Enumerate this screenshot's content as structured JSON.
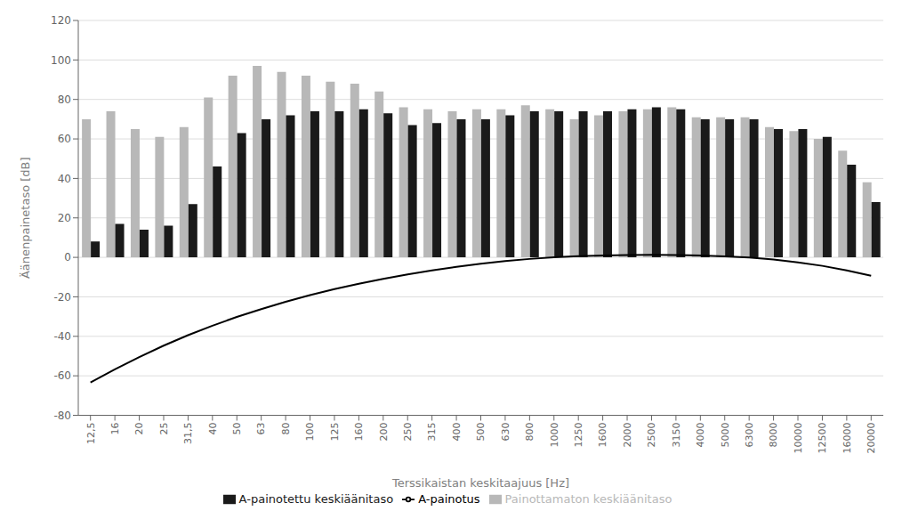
{
  "chart_data": {
    "type": "bar",
    "categories": [
      "12,5",
      "16",
      "20",
      "25",
      "31,5",
      "40",
      "50",
      "63",
      "80",
      "100",
      "125",
      "160",
      "200",
      "250",
      "315",
      "400",
      "500",
      "630",
      "800",
      "1000",
      "1250",
      "1600",
      "2000",
      "2500",
      "3150",
      "4000",
      "5000",
      "6300",
      "8000",
      "10000",
      "12500",
      "16000",
      "20000"
    ],
    "series": [
      {
        "name": "Painottamaton keskiäänitaso",
        "type": "bar",
        "color": "#b8b8b8",
        "values": [
          70,
          74,
          65,
          61,
          66,
          81,
          92,
          97,
          94,
          92,
          89,
          88,
          84,
          76,
          75,
          74,
          75,
          75,
          77,
          75,
          70,
          72,
          74,
          75,
          76,
          71,
          71,
          71,
          66,
          64,
          60,
          54,
          38
        ]
      },
      {
        "name": "A-painotettu keskiäänitaso",
        "type": "bar",
        "color": "#1a1a1a",
        "values": [
          8,
          17,
          14,
          16,
          27,
          46,
          63,
          70,
          72,
          74,
          74,
          75,
          73,
          67,
          68,
          70,
          70,
          72,
          74,
          74,
          74,
          74,
          75,
          76,
          75,
          70,
          70,
          70,
          65,
          65,
          61,
          47,
          28
        ]
      },
      {
        "name": "A-painotus",
        "type": "line",
        "color": "#000000",
        "values": [
          -63.4,
          -56.7,
          -50.5,
          -44.7,
          -39.4,
          -34.6,
          -30.2,
          -26.2,
          -22.5,
          -19.1,
          -16.1,
          -13.4,
          -10.9,
          -8.6,
          -6.6,
          -4.8,
          -3.2,
          -1.9,
          -0.8,
          0.0,
          0.6,
          1.0,
          1.2,
          1.3,
          1.2,
          1.0,
          0.5,
          -0.1,
          -1.1,
          -2.5,
          -4.3,
          -6.6,
          -9.3
        ]
      }
    ],
    "xlabel": "Terssikaistan keskitaajuus [Hz]",
    "ylabel": "Äänenpainetaso [dB]",
    "ylim": [
      -80,
      120
    ],
    "yticks": [
      -80,
      -60,
      -40,
      -20,
      0,
      20,
      40,
      60,
      80,
      100,
      120
    ],
    "grid": true,
    "legend": "bottom"
  }
}
